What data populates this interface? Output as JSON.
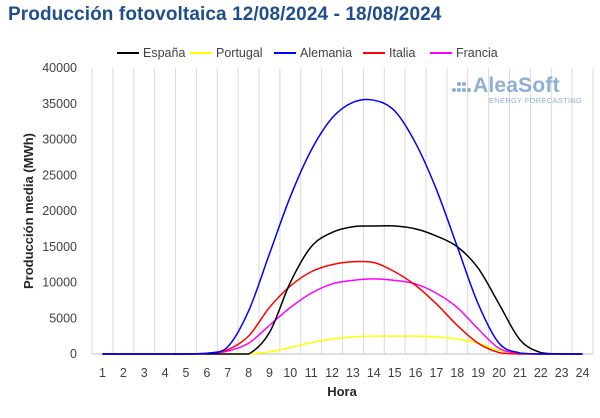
{
  "chart_data": {
    "type": "line",
    "title": "Producción fotovoltaica 12/08/2024 - 18/08/2024",
    "xlabel": "Hora",
    "ylabel": "Producción media (MWh)",
    "categories": [
      "1",
      "2",
      "3",
      "4",
      "5",
      "6",
      "7",
      "8",
      "9",
      "10",
      "11",
      "12",
      "13",
      "14",
      "15",
      "16",
      "17",
      "18",
      "19",
      "20",
      "21",
      "22",
      "23",
      "24"
    ],
    "x": [
      1,
      2,
      3,
      4,
      5,
      6,
      7,
      8,
      9,
      10,
      11,
      12,
      13,
      14,
      15,
      16,
      17,
      18,
      19,
      20,
      21,
      22,
      23,
      24
    ],
    "ylim": [
      0,
      40000
    ],
    "yticks": [
      0,
      5000,
      10000,
      15000,
      20000,
      25000,
      30000,
      35000,
      40000
    ],
    "ytick_labels": [
      "0",
      "5000",
      "10000",
      "15000",
      "20000",
      "25000",
      "30000",
      "35000",
      "40000"
    ],
    "grid": "vertical",
    "legend_position": "top",
    "series": [
      {
        "name": "España",
        "color": "#000000",
        "values": [
          0,
          0,
          0,
          0,
          0,
          0,
          0,
          0,
          3000,
          10000,
          15000,
          17000,
          17800,
          17900,
          17900,
          17500,
          16500,
          15000,
          12000,
          7000,
          2000,
          200,
          0,
          0
        ]
      },
      {
        "name": "Portugal",
        "color": "#ffff00",
        "values": [
          0,
          0,
          0,
          0,
          0,
          0,
          0,
          0,
          300,
          900,
          1600,
          2100,
          2400,
          2500,
          2500,
          2500,
          2400,
          2100,
          1500,
          500,
          50,
          0,
          0,
          0
        ]
      },
      {
        "name": "Alemania",
        "color": "#0000ff",
        "values": [
          0,
          0,
          0,
          0,
          0,
          100,
          1000,
          6000,
          14000,
          22000,
          28500,
          33000,
          35200,
          35500,
          34000,
          29500,
          23000,
          15000,
          7000,
          1500,
          150,
          0,
          0,
          0
        ]
      },
      {
        "name": "Italia",
        "color": "#ff0000",
        "values": [
          0,
          0,
          0,
          0,
          0,
          100,
          600,
          2500,
          6500,
          9500,
          11500,
          12500,
          12900,
          12800,
          11500,
          9600,
          7000,
          4000,
          1500,
          200,
          0,
          0,
          0,
          0
        ]
      },
      {
        "name": "Francia",
        "color": "#ff00ff",
        "values": [
          0,
          0,
          0,
          0,
          0,
          50,
          400,
          1500,
          4000,
          6500,
          8500,
          9800,
          10300,
          10500,
          10300,
          9800,
          8500,
          6500,
          3500,
          800,
          100,
          0,
          0,
          0
        ]
      }
    ]
  },
  "watermark": {
    "brand": "AleaSoft",
    "tagline": "ENERGY FORECASTING",
    "color": "#8eaed6"
  }
}
